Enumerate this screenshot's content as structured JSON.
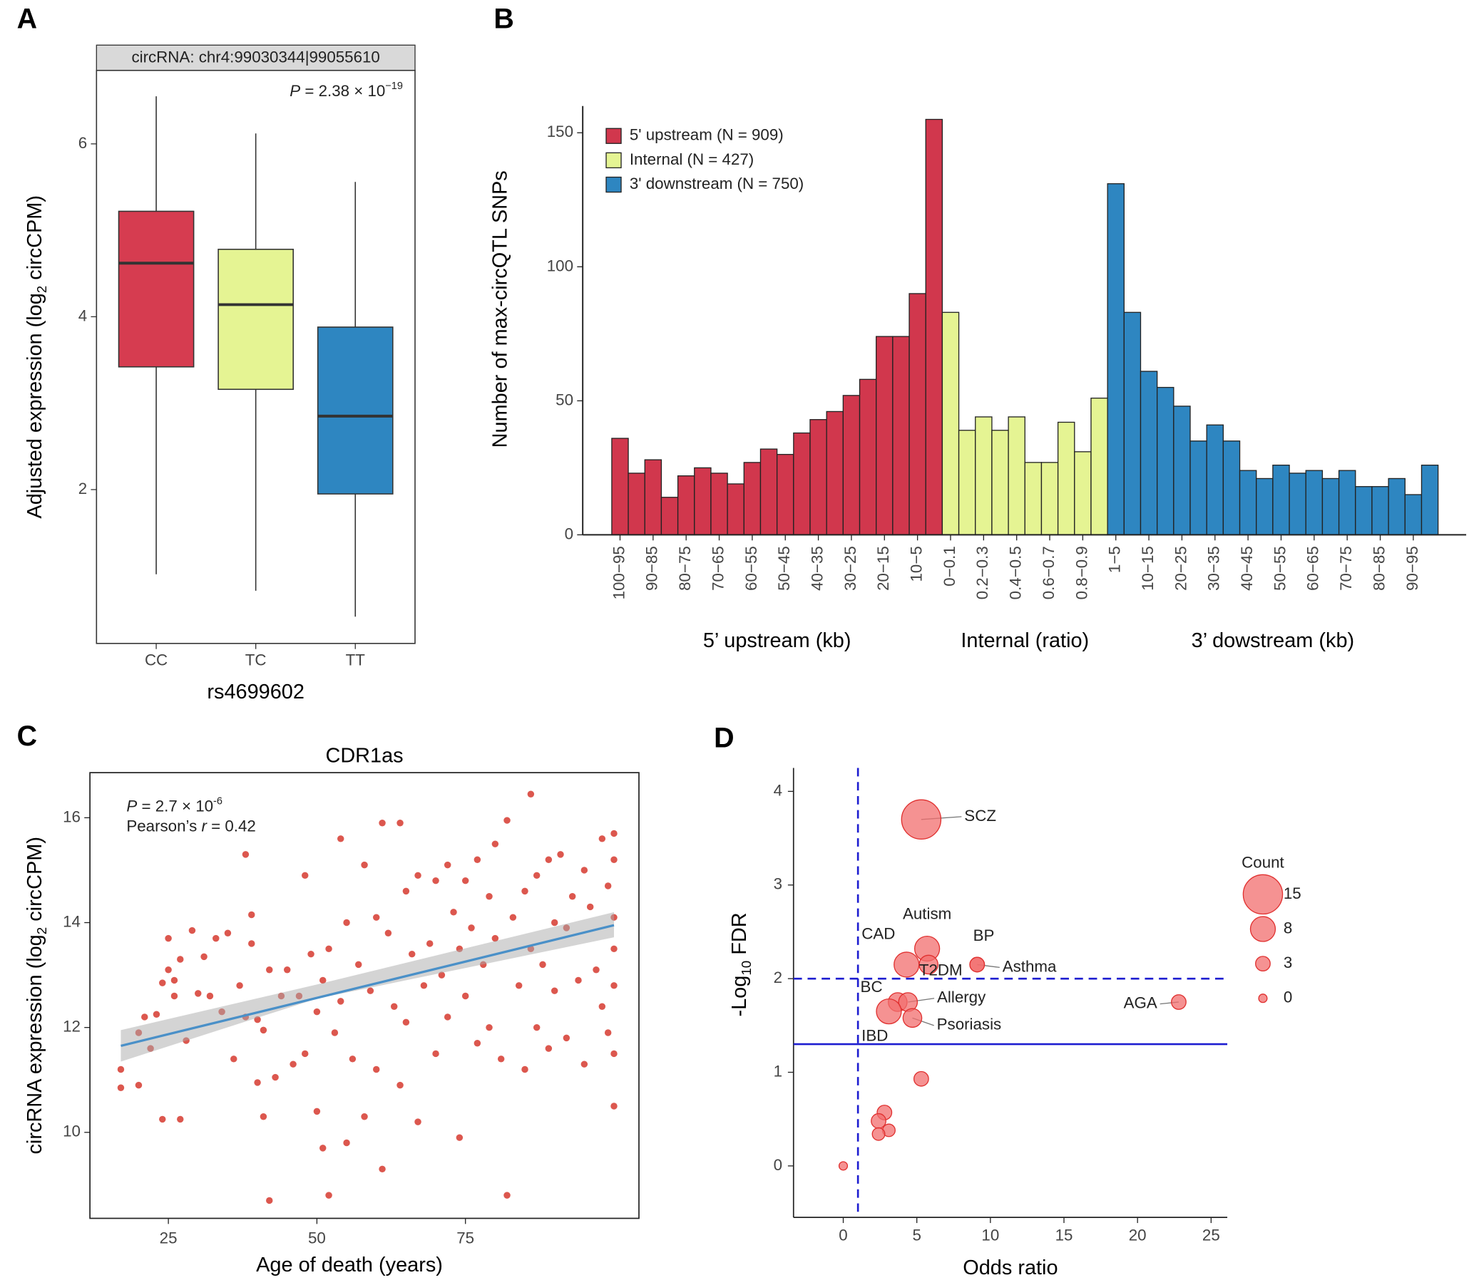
{
  "chart_data": [
    {
      "panel": "A",
      "type": "box",
      "strip": "circRNA: chr4:99030344|99055610",
      "annotation": [
        "P",
        " = 2.38 × 10",
        "−19"
      ],
      "x_label": "rs4699602",
      "y_label": [
        "Adjusted expression (log",
        "2",
        " circCPM)"
      ],
      "categories": [
        "CC",
        "TC",
        "TT"
      ],
      "colors": [
        "#d63c50",
        "#e5f493",
        "#2e86c1"
      ],
      "min": [
        1.02,
        0.83,
        0.53
      ],
      "q1": [
        3.42,
        3.16,
        1.95
      ],
      "median": [
        4.62,
        4.14,
        2.85
      ],
      "q3": [
        5.22,
        4.78,
        3.88
      ],
      "max": [
        6.55,
        6.12,
        5.56
      ],
      "ylim": [
        0.22,
        6.85
      ],
      "yticks": [
        2,
        4,
        6
      ]
    },
    {
      "panel": "B",
      "type": "bar",
      "y_label": "Number of max-circQTL SNPs",
      "categories": [
        "100−95",
        null,
        "90−85",
        null,
        "80−75",
        null,
        "70−65",
        null,
        "60−55",
        null,
        "50−45",
        null,
        "40−35",
        null,
        "30−25",
        null,
        "20−15",
        null,
        "10−5",
        null,
        "0−0.1",
        null,
        "0.2−0.3",
        null,
        "0.4−0.5",
        null,
        "0.6−0.7",
        null,
        "0.8−0.9",
        null,
        "1−5",
        null,
        "10−15",
        null,
        "20−25",
        null,
        "30−35",
        null,
        "40−45",
        null,
        "50−55",
        null,
        "60−65",
        null,
        "70−75",
        null,
        "80−85",
        null,
        "90−95",
        null
      ],
      "series": [
        {
          "name": "5' upstream (N = 909)",
          "group_label": "5’ upstream (kb)",
          "color": "#d1374d",
          "values": [
            36,
            23,
            28,
            14,
            22,
            25,
            23,
            19,
            27,
            32,
            30,
            38,
            43,
            46,
            52,
            58,
            74,
            74,
            90,
            155,
            null,
            null,
            null,
            null,
            null,
            null,
            null,
            null,
            null,
            null,
            null,
            null,
            null,
            null,
            null,
            null,
            null,
            null,
            null,
            null,
            null,
            null,
            null,
            null,
            null,
            null,
            null,
            null,
            null,
            null
          ]
        },
        {
          "name": "Internal (N  = 427)",
          "group_label": "Internal (ratio)",
          "color": "#e5f493",
          "values": [
            null,
            null,
            null,
            null,
            null,
            null,
            null,
            null,
            null,
            null,
            null,
            null,
            null,
            null,
            null,
            null,
            null,
            null,
            null,
            null,
            83,
            39,
            44,
            39,
            44,
            27,
            27,
            42,
            31,
            51,
            null,
            null,
            null,
            null,
            null,
            null,
            null,
            null,
            null,
            null,
            null,
            null,
            null,
            null,
            null,
            null,
            null,
            null,
            null,
            null
          ]
        },
        {
          "name": "3' downstream (N  = 750)",
          "group_label": "3’ dowstream (kb)",
          "color": "#2e86c1",
          "values": [
            null,
            null,
            null,
            null,
            null,
            null,
            null,
            null,
            null,
            null,
            null,
            null,
            null,
            null,
            null,
            null,
            null,
            null,
            null,
            null,
            null,
            null,
            null,
            null,
            null,
            null,
            null,
            null,
            null,
            null,
            131,
            83,
            61,
            55,
            48,
            35,
            41,
            35,
            24,
            21,
            26,
            23,
            24,
            21,
            24,
            18,
            18,
            21,
            15,
            26
          ]
        }
      ],
      "ylim": [
        0,
        160
      ],
      "yticks": [
        0,
        50,
        100,
        150
      ],
      "legend": "top-left"
    },
    {
      "panel": "C",
      "type": "scatter",
      "title": "CDR1as",
      "annotation": [
        [
          "P",
          " = 2.7 × 10",
          "-6"
        ],
        [
          "Pearson’s ",
          "r",
          " = 0.42"
        ]
      ],
      "x_label": "Age of death (years)",
      "y_label": [
        "circRNA expression (log",
        "2",
        " circCPM)"
      ],
      "color": "#d6392f",
      "fit_color": "#4a90c8",
      "x": [
        17,
        17,
        20,
        20,
        21,
        22,
        23,
        24,
        24,
        25,
        25,
        26,
        26,
        27,
        27,
        28,
        29,
        30,
        31,
        32,
        33,
        34,
        35,
        36,
        37,
        38,
        38,
        39,
        39,
        40,
        40,
        41,
        41,
        42,
        42,
        43,
        44,
        45,
        46,
        47,
        48,
        48,
        49,
        50,
        50,
        51,
        51,
        52,
        52,
        53,
        54,
        54,
        55,
        55,
        56,
        57,
        58,
        58,
        59,
        60,
        60,
        61,
        61,
        62,
        63,
        64,
        64,
        65,
        65,
        66,
        67,
        67,
        68,
        69,
        70,
        70,
        71,
        72,
        72,
        73,
        74,
        74,
        75,
        75,
        76,
        77,
        77,
        78,
        79,
        79,
        80,
        80,
        81,
        82,
        82,
        83,
        84,
        85,
        85,
        86,
        86,
        87,
        87,
        88,
        89,
        89,
        90,
        90,
        91,
        92,
        92,
        93,
        94,
        95,
        95,
        96,
        97,
        98,
        98,
        99,
        99,
        100,
        100,
        100,
        100,
        100,
        100,
        100
      ],
      "values": [
        11.2,
        10.85,
        10.9,
        11.9,
        12.2,
        11.6,
        12.25,
        12.85,
        10.25,
        13.7,
        13.1,
        12.6,
        12.9,
        10.25,
        13.3,
        11.75,
        13.85,
        12.65,
        13.35,
        12.6,
        13.7,
        12.3,
        13.8,
        11.4,
        12.8,
        15.3,
        12.2,
        14.15,
        13.6,
        10.95,
        12.15,
        10.3,
        11.95,
        8.7,
        13.1,
        11.05,
        12.6,
        13.1,
        11.3,
        12.6,
        14.9,
        11.5,
        13.4,
        10.4,
        12.3,
        9.7,
        12.9,
        8.8,
        13.5,
        11.9,
        15.6,
        12.5,
        14.0,
        9.8,
        11.4,
        13.2,
        15.1,
        10.3,
        12.7,
        14.1,
        11.2,
        15.9,
        9.3,
        13.8,
        12.4,
        15.9,
        10.9,
        14.6,
        12.1,
        13.4,
        10.2,
        14.9,
        12.8,
        13.6,
        11.5,
        14.8,
        13.0,
        15.1,
        12.2,
        14.2,
        9.9,
        13.5,
        14.8,
        12.6,
        13.9,
        11.7,
        15.2,
        13.2,
        14.5,
        12.0,
        15.5,
        13.7,
        11.4,
        8.8,
        15.95,
        14.1,
        12.8,
        14.6,
        11.2,
        16.45,
        13.5,
        14.9,
        12.0,
        13.2,
        15.2,
        11.6,
        14.0,
        12.7,
        15.3,
        13.9,
        11.8,
        14.5,
        12.9,
        15.0,
        11.3,
        14.3,
        13.1,
        15.6,
        12.4,
        14.7,
        11.9,
        15.7,
        10.5,
        14.1,
        12.8,
        11.5,
        13.5,
        15.2
      ],
      "fit": {
        "x": [
          17,
          100
        ],
        "values": [
          11.65,
          13.95
        ]
      },
      "band": {
        "x": [
          17,
          50,
          100
        ],
        "lower": [
          11.35,
          12.55,
          13.72
        ],
        "upper": [
          11.95,
          12.82,
          14.2
        ]
      },
      "xlim": [
        11.8,
        104.2
      ],
      "xticks": [
        25,
        50,
        75
      ],
      "ylim": [
        8.36,
        16.86
      ],
      "yticks": [
        10,
        12,
        14,
        16
      ]
    },
    {
      "panel": "D",
      "type": "bubble",
      "x_label": "Odds ratio",
      "y_label": [
        "-Log",
        "10",
        " FDR"
      ],
      "color": "#f26d6d",
      "stroke": "#e0302f",
      "x": [
        5.3,
        5.7,
        4.3,
        5.8,
        9.1,
        9.1,
        3.7,
        4.4,
        3.1,
        4.7,
        22.8,
        5.3,
        2.8,
        2.4,
        3.1,
        2.4,
        0
      ],
      "values": [
        3.7,
        2.32,
        2.15,
        2.15,
        2.15,
        2.15,
        1.75,
        1.75,
        1.65,
        1.58,
        1.75,
        0.93,
        0.57,
        0.48,
        0.38,
        0.34,
        0
      ],
      "sizes": [
        15,
        8,
        8,
        5,
        3,
        3,
        5,
        5,
        8,
        5,
        3,
        3,
        3,
        3,
        2,
        2,
        0
      ],
      "labels": [
        "SCZ",
        "Autism",
        "CAD",
        "T2DM",
        "BP",
        "Asthma",
        "BC",
        "Allergy",
        "IBD",
        "Psoriasis",
        "AGA",
        null,
        null,
        null,
        null,
        null,
        null
      ],
      "reference_lines": [
        {
          "axis": "x",
          "value": 1,
          "style": "dashed"
        },
        {
          "axis": "y",
          "value": 2,
          "style": "dashed"
        },
        {
          "axis": "y",
          "value": 1.3,
          "style": "solid"
        }
      ],
      "reference_color": "#1d1dd0",
      "size_legend": {
        "title": "Count",
        "values": [
          15,
          8,
          3,
          0
        ]
      },
      "xlim": [
        -3.38,
        26.1
      ],
      "xticks": [
        0,
        5,
        10,
        15,
        20,
        25
      ],
      "ylim": [
        -0.55,
        4.25
      ],
      "yticks": [
        0,
        1,
        2,
        3,
        4
      ]
    }
  ]
}
